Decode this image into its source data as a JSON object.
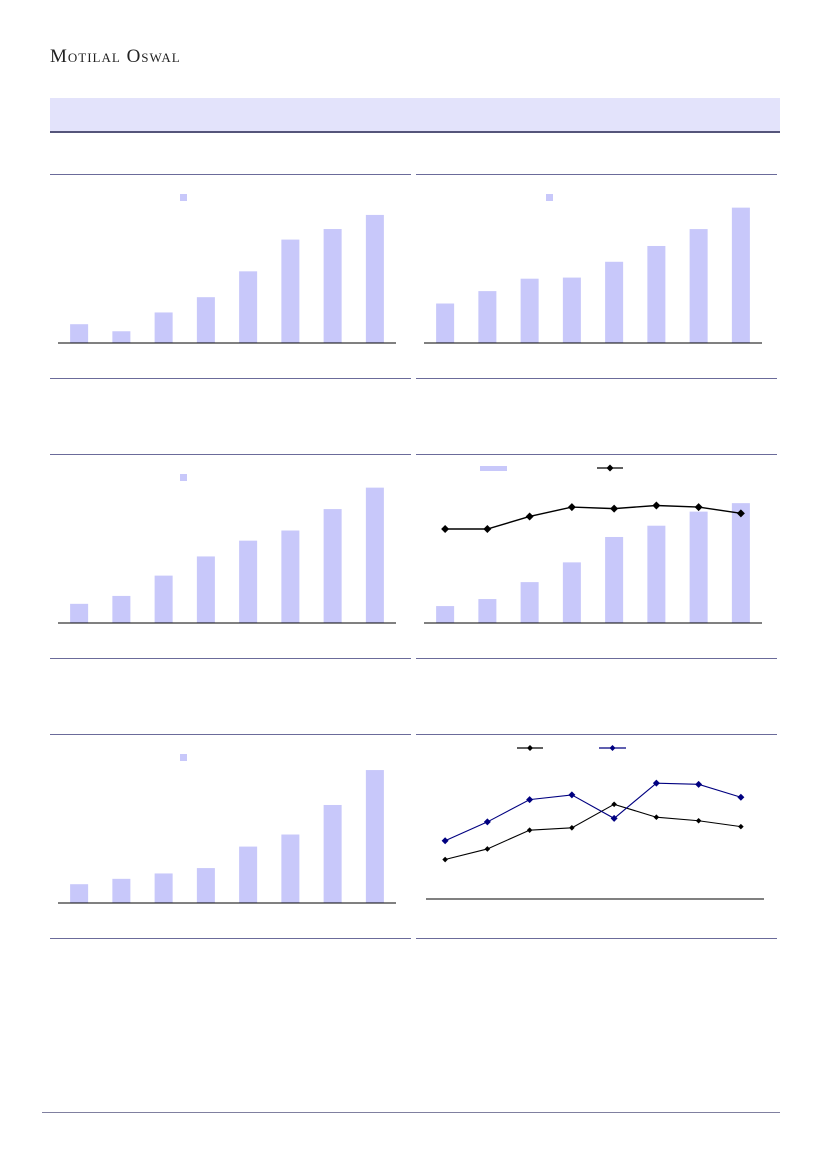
{
  "header": {
    "brand": "Motilal Oswal"
  },
  "colors": {
    "bar": "#c8c8fa",
    "line_black": "#000000",
    "line_navy": "#000080",
    "band": "#e3e3fb",
    "rule": "#6b6b9a"
  },
  "chart_data": [
    {
      "type": "bar",
      "legend": "top-center",
      "series": [
        {
          "values": [
            16,
            10,
            26,
            39,
            61,
            88,
            97,
            109
          ]
        }
      ],
      "ylim": [
        0,
        120
      ]
    },
    {
      "type": "bar",
      "legend": "top-center",
      "series": [
        {
          "values": [
            35,
            46,
            57,
            58,
            72,
            86,
            101,
            120
          ]
        }
      ],
      "ylim": [
        0,
        125
      ]
    },
    {
      "type": "bar",
      "legend": "top-center",
      "series": [
        {
          "values": [
            17,
            24,
            42,
            59,
            73,
            82,
            101,
            120
          ]
        }
      ],
      "ylim": [
        0,
        125
      ]
    },
    {
      "type": "bar+line",
      "legend": "top",
      "bars": {
        "values": [
          12,
          17,
          29,
          43,
          61,
          69,
          79,
          85
        ]
      },
      "bars_ylim": [
        0,
        100
      ],
      "line": {
        "marker": "diamond",
        "values": [
          80,
          80,
          88,
          94,
          93,
          95,
          94,
          90
        ]
      },
      "line_ylim": [
        20,
        110
      ]
    },
    {
      "type": "bar",
      "legend": "top-center",
      "series": [
        {
          "values": [
            14,
            18,
            22,
            26,
            42,
            51,
            73,
            99
          ]
        }
      ],
      "ylim": [
        0,
        105
      ]
    },
    {
      "type": "line",
      "legend": "top",
      "series": [
        {
          "color": "#000000",
          "values": [
            37,
            46,
            62,
            64,
            84,
            73,
            70,
            65
          ]
        },
        {
          "color": "#000080",
          "values": [
            53,
            69,
            88,
            92,
            72,
            102,
            101,
            90
          ]
        }
      ],
      "ylim": [
        0,
        120
      ]
    }
  ]
}
